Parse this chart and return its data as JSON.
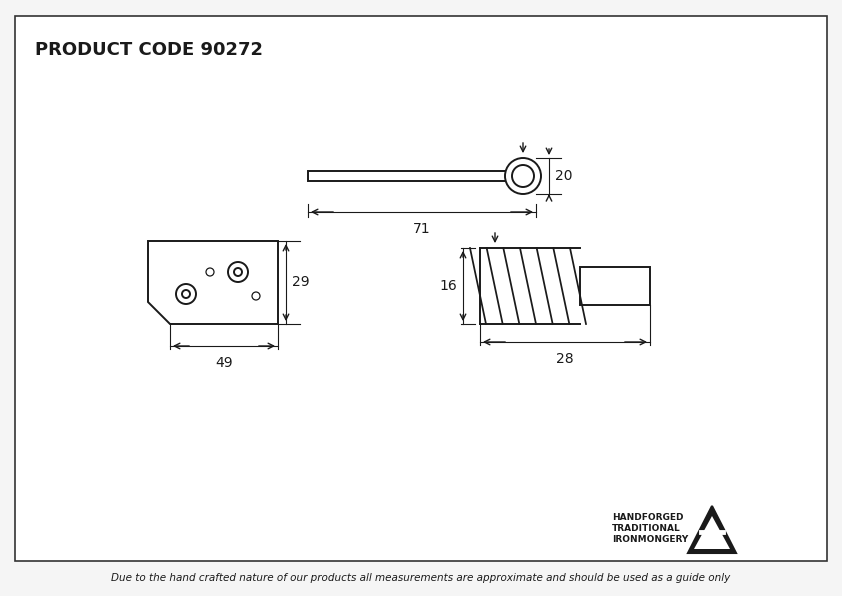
{
  "title": "PRODUCT CODE 90272",
  "background_color": "#f5f5f5",
  "border_color": "#333333",
  "line_color": "#1a1a1a",
  "footer_text": "Due to the hand crafted nature of our products all measurements are approximate and should be used as a guide only",
  "brand_lines": [
    "HANDFORGED",
    "TRADITIONAL",
    "IRONMONGERY"
  ],
  "dim_71": "71",
  "dim_20": "20",
  "dim_49": "49",
  "dim_29": "29",
  "dim_16": "16",
  "dim_28": "28"
}
